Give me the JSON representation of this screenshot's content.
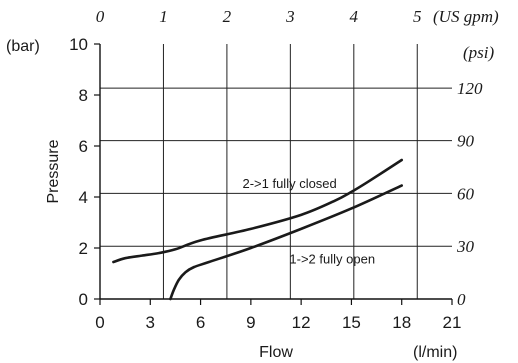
{
  "chart_data": {
    "type": "line",
    "xlabel": "Flow",
    "xunit": "(l/min)",
    "ylabel": "Pressure",
    "yunit": "(bar)",
    "xlim": [
      0,
      21
    ],
    "ylim": [
      0,
      10
    ],
    "x_ticks": [
      "0",
      "3",
      "6",
      "9",
      "12",
      "15",
      "18",
      "21"
    ],
    "y_ticks": [
      "0",
      "2",
      "4",
      "6",
      "8",
      "10"
    ],
    "top_axis": {
      "unit": "(US gpm)",
      "ticks": [
        {
          "x": 0.0,
          "label": "0"
        },
        {
          "x": 3.785,
          "label": "1"
        },
        {
          "x": 7.571,
          "label": "2"
        },
        {
          "x": 11.356,
          "label": "3"
        },
        {
          "x": 15.142,
          "label": "4"
        },
        {
          "x": 18.927,
          "label": "5"
        }
      ]
    },
    "right_axis": {
      "unit": "(psi)",
      "ticks": [
        {
          "y": 0.0,
          "label": "0"
        },
        {
          "y": 2.07,
          "label": "30"
        },
        {
          "y": 4.14,
          "label": "60"
        },
        {
          "y": 6.21,
          "label": "90"
        },
        {
          "y": 8.27,
          "label": "120"
        }
      ]
    },
    "grid": true,
    "series": [
      {
        "name": "2->1 fully closed",
        "x": [
          0.8,
          1.5,
          2.5,
          3.5,
          4.5,
          6,
          9,
          12,
          14,
          15,
          16,
          18
        ],
        "y": [
          1.45,
          1.6,
          1.7,
          1.8,
          1.95,
          2.3,
          2.75,
          3.3,
          3.85,
          4.2,
          4.6,
          5.45
        ]
      },
      {
        "name": "1->2 fully open",
        "x": [
          4.2,
          4.4,
          4.7,
          5.1,
          5.6,
          6.5,
          9,
          12,
          15,
          18
        ],
        "y": [
          0.0,
          0.35,
          0.75,
          1.05,
          1.25,
          1.45,
          2.0,
          2.75,
          3.55,
          4.45
        ]
      }
    ],
    "annotations": [
      {
        "text": "2->1 fully closed",
        "x": 8.5,
        "y": 4.35
      },
      {
        "text": "1->2 fully open",
        "x": 11.3,
        "y": 1.4
      }
    ]
  }
}
